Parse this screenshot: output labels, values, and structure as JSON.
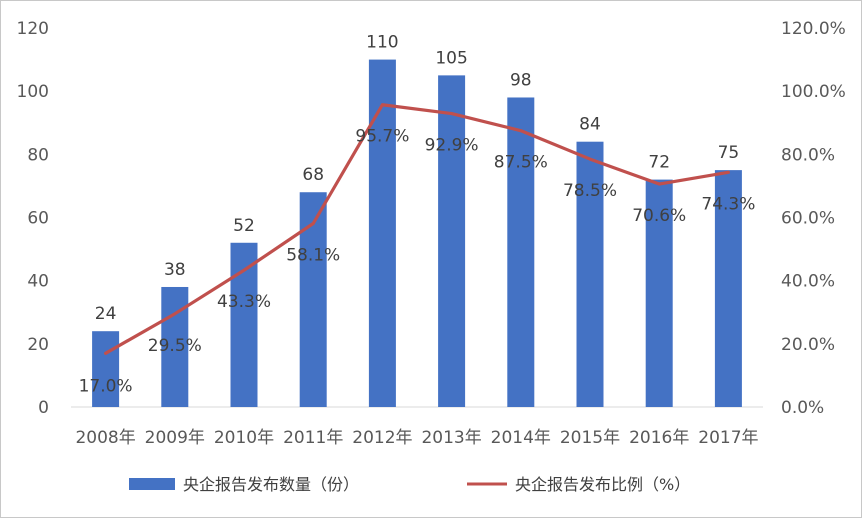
{
  "chart_data": {
    "type": "bar",
    "categories": [
      "2008年",
      "2009年",
      "2010年",
      "2011年",
      "2012年",
      "2013年",
      "2014年",
      "2015年",
      "2016年",
      "2017年"
    ],
    "series": [
      {
        "name": "央企报告发布数量（份）",
        "type": "bar",
        "axis": "left",
        "color": "#4472c4",
        "values": [
          24,
          38,
          52,
          68,
          110,
          105,
          98,
          84,
          72,
          75
        ]
      },
      {
        "name": "央企报告发布比例（%）",
        "type": "line",
        "axis": "right",
        "color": "#c0504d",
        "values": [
          17.0,
          29.5,
          43.3,
          58.1,
          95.7,
          92.9,
          87.5,
          78.5,
          70.6,
          74.3
        ],
        "labels": [
          "17.0%",
          "29.5%",
          "43.3%",
          "58.1%",
          "95.7%",
          "92.9%",
          "87.5%",
          "78.5%",
          "70.6%",
          "74.3%"
        ]
      }
    ],
    "y_left": {
      "min": 0,
      "max": 120,
      "ticks": [
        "0",
        "20",
        "40",
        "60",
        "80",
        "100",
        "120"
      ]
    },
    "y_right": {
      "min": 0,
      "max": 120,
      "ticks": [
        "0.0%",
        "20.0%",
        "40.0%",
        "60.0%",
        "80.0%",
        "100.0%",
        "120.0%"
      ]
    },
    "grid": false,
    "legend_position": "bottom"
  }
}
